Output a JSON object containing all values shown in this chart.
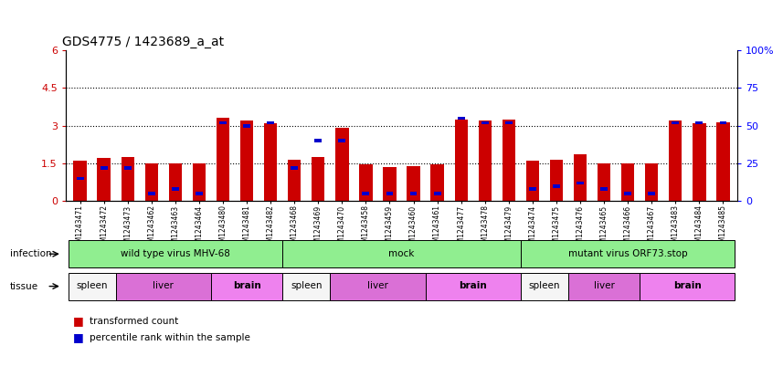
{
  "title": "GDS4775 / 1423689_a_at",
  "samples": [
    "GSM1243471",
    "GSM1243472",
    "GSM1243473",
    "GSM1243462",
    "GSM1243463",
    "GSM1243464",
    "GSM1243480",
    "GSM1243481",
    "GSM1243482",
    "GSM1243468",
    "GSM1243469",
    "GSM1243470",
    "GSM1243458",
    "GSM1243459",
    "GSM1243460",
    "GSM1243461",
    "GSM1243477",
    "GSM1243478",
    "GSM1243479",
    "GSM1243474",
    "GSM1243475",
    "GSM1243476",
    "GSM1243465",
    "GSM1243466",
    "GSM1243467",
    "GSM1243483",
    "GSM1243484",
    "GSM1243485"
  ],
  "transformed_count": [
    1.6,
    1.7,
    1.75,
    1.5,
    1.5,
    1.5,
    3.3,
    3.2,
    3.1,
    1.65,
    1.75,
    2.9,
    1.45,
    1.35,
    1.4,
    1.45,
    3.25,
    3.2,
    3.25,
    1.6,
    1.65,
    1.85,
    1.5,
    1.5,
    1.5,
    3.2,
    3.1,
    3.15
  ],
  "percentile_rank": [
    15,
    22,
    22,
    5,
    8,
    5,
    52,
    50,
    52,
    22,
    40,
    40,
    5,
    5,
    5,
    5,
    55,
    52,
    52,
    8,
    10,
    12,
    8,
    5,
    5,
    52,
    52,
    52
  ],
  "infection_labels": [
    "wild type virus MHV-68",
    "mock",
    "mutant virus ORF73.stop"
  ],
  "infection_starts": [
    0,
    9,
    19
  ],
  "infection_ends": [
    9,
    19,
    28
  ],
  "infection_color": "#90EE90",
  "tissue_labels": [
    "spleen",
    "liver",
    "brain",
    "spleen",
    "liver",
    "brain",
    "spleen",
    "liver",
    "brain"
  ],
  "tissue_starts": [
    0,
    2,
    6,
    9,
    11,
    15,
    19,
    21,
    24
  ],
  "tissue_ends": [
    2,
    6,
    9,
    11,
    15,
    19,
    21,
    24,
    28
  ],
  "spleen_color": "#f5f5f5",
  "liver_color": "#DA70D6",
  "brain_color": "#EE82EE",
  "left_yticks": [
    0,
    1.5,
    3.0,
    4.5,
    6
  ],
  "right_yticks": [
    0,
    25,
    50,
    75,
    100
  ],
  "left_ylim": [
    0,
    6
  ],
  "right_ylim": [
    0,
    100
  ],
  "bar_color": "#CC0000",
  "blue_color": "#0000CC",
  "background_color": "#ffffff"
}
